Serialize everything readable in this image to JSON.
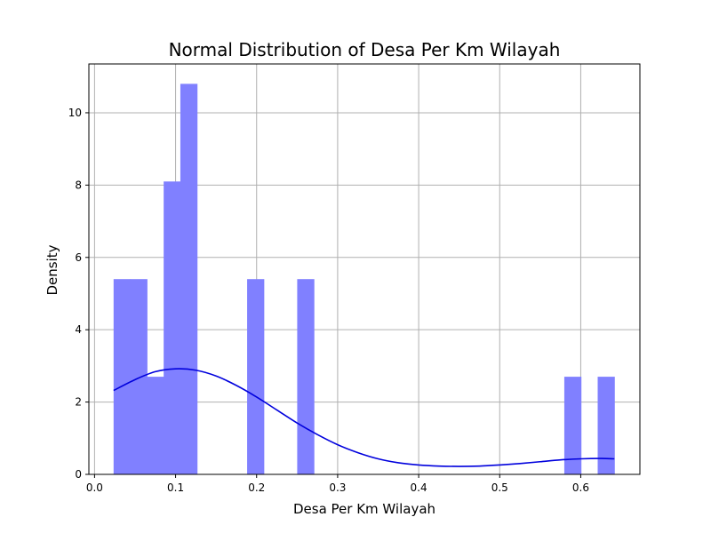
{
  "chart_data": {
    "type": "bar",
    "title": "Normal Distribution of Desa Per Km Wilayah",
    "xlabel": "Desa Per Km Wilayah",
    "ylabel": "Density",
    "xlim": [
      -0.007,
      0.673
    ],
    "ylim": [
      0,
      11.35
    ],
    "xticks": [
      0.0,
      0.1,
      0.2,
      0.3,
      0.4,
      0.5,
      0.6
    ],
    "xtick_labels": [
      "0.0",
      "0.1",
      "0.2",
      "0.3",
      "0.4",
      "0.5",
      "0.6"
    ],
    "yticks": [
      0,
      2,
      4,
      6,
      8,
      10
    ],
    "ytick_labels": [
      "0",
      "2",
      "4",
      "6",
      "8",
      "10"
    ],
    "grid": true,
    "bar_color": "#8080ff",
    "line_color": "#0000dd",
    "bins": [
      {
        "x0": 0.0235,
        "x1": 0.0441,
        "value": 5.4
      },
      {
        "x0": 0.0441,
        "x1": 0.0647,
        "value": 5.4
      },
      {
        "x0": 0.0647,
        "x1": 0.0853,
        "value": 2.7
      },
      {
        "x0": 0.0853,
        "x1": 0.1059,
        "value": 8.1
      },
      {
        "x0": 0.1059,
        "x1": 0.1265,
        "value": 10.8
      },
      {
        "x0": 0.1883,
        "x1": 0.2089,
        "value": 5.4
      },
      {
        "x0": 0.2501,
        "x1": 0.2707,
        "value": 5.4
      },
      {
        "x0": 0.5797,
        "x1": 0.6003,
        "value": 2.7
      },
      {
        "x0": 0.6209,
        "x1": 0.6415,
        "value": 2.7
      }
    ],
    "kde": {
      "x": [
        0.0235,
        0.05,
        0.075,
        0.1,
        0.125,
        0.15,
        0.175,
        0.2,
        0.225,
        0.25,
        0.275,
        0.3,
        0.325,
        0.35,
        0.375,
        0.4,
        0.425,
        0.45,
        0.475,
        0.5,
        0.525,
        0.55,
        0.575,
        0.6,
        0.625,
        0.6415
      ],
      "y": [
        2.32,
        2.62,
        2.84,
        2.92,
        2.88,
        2.72,
        2.46,
        2.14,
        1.78,
        1.42,
        1.1,
        0.82,
        0.6,
        0.43,
        0.32,
        0.26,
        0.23,
        0.22,
        0.23,
        0.26,
        0.3,
        0.35,
        0.4,
        0.43,
        0.44,
        0.43
      ]
    }
  }
}
